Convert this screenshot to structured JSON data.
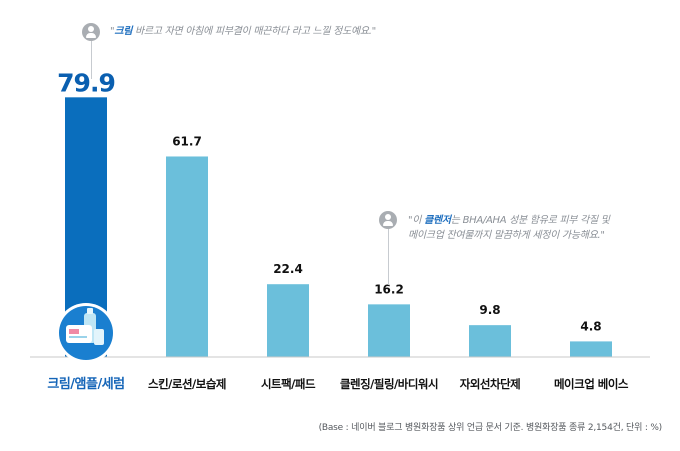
{
  "chart_data": {
    "type": "bar",
    "categories": [
      "크림/앰플/세럼",
      "스킨/로션/보습제",
      "시트팩/패드",
      "클렌징/필링/바디워시",
      "자외선차단제",
      "메이크업 베이스"
    ],
    "values": [
      79.9,
      61.7,
      22.4,
      16.2,
      9.8,
      4.8
    ],
    "value_labels": [
      "79.9",
      "61.7",
      "22.4",
      "16.2",
      "9.8",
      "4.8"
    ],
    "ylim": [
      0,
      80
    ],
    "grid": false,
    "highlight_index": 0,
    "highlight_icon": "cosmetic-bottles-icon"
  },
  "quotes": [
    {
      "icon": "user-icon",
      "open": "\"",
      "keyword": "크림",
      "rest": " 바르고 자면 아침에 피부결이 매끈하다 라고 느낄 정도예요.\"",
      "line2": ""
    },
    {
      "icon": "user-icon",
      "open": "\"이 ",
      "keyword": "클렌저",
      "rest": "는 BHA/AHA 성분 함유로 피부 각질 및",
      "line2": "메이크업 잔여물까지 말끔하게 세정이 가능해요.\""
    }
  ],
  "footnote": "(Base : 네이버 블로그 병원화장품 상위 언급 문서 기준. 병원화장품 종류 2,154건, 단위 : %)",
  "colors": {
    "highlight_bar": "#0a6ebd",
    "bar": "#6bbfdb",
    "highlight_value": "#0a5fb0",
    "highlight_label": "#1565b8",
    "label": "#111111",
    "baseline": "#c9c9c9"
  }
}
